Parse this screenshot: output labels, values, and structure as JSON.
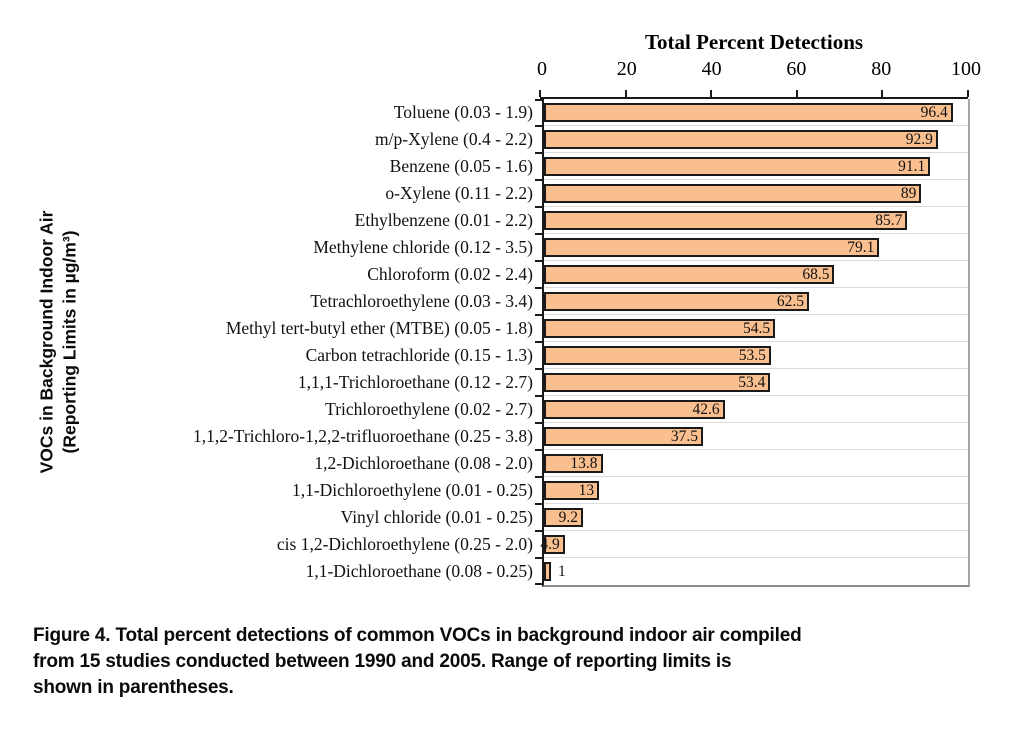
{
  "chart_data": {
    "type": "bar",
    "orientation": "horizontal",
    "title": "Total Percent Detections",
    "xlabel": "Total Percent Detections",
    "ylabel_line1": "VOCs in Background Indoor Air",
    "ylabel_line2": "(Reporting Limits in µg/m³)",
    "xlim": [
      0,
      100
    ],
    "x_ticks": [
      0,
      20,
      40,
      60,
      80,
      100
    ],
    "grid": "category-separators",
    "legend": "none",
    "colors": {
      "bar_fill": "#FABF8F",
      "bar_border": "#1a1a1a",
      "gridline": "#dcdcdc",
      "axis": "#1a1a1a"
    },
    "categories": [
      "Toluene (0.03 - 1.9)",
      "m/p-Xylene (0.4 - 2.2)",
      "Benzene (0.05 - 1.6)",
      "o-Xylene (0.11 - 2.2)",
      "Ethylbenzene (0.01 - 2.2)",
      "Methylene chloride (0.12 - 3.5)",
      "Chloroform (0.02 - 2.4)",
      "Tetrachloroethylene (0.03 - 3.4)",
      "Methyl tert-butyl ether (MTBE) (0.05 - 1.8)",
      "Carbon tetrachloride (0.15 - 1.3)",
      "1,1,1-Trichloroethane (0.12 - 2.7)",
      "Trichloroethylene (0.02 - 2.7)",
      "1,1,2-Trichloro-1,2,2-trifluoroethane (0.25 - 3.8)",
      "1,2-Dichloroethane (0.08 - 2.0)",
      "1,1-Dichloroethylene (0.01 - 0.25)",
      "Vinyl chloride (0.01 - 0.25)",
      "cis 1,2-Dichloroethylene (0.25 - 2.0)",
      "1,1-Dichloroethane (0.08 - 0.25)"
    ],
    "values": [
      96.4,
      92.9,
      91.1,
      89,
      85.7,
      79.1,
      68.5,
      62.5,
      54.5,
      53.5,
      53.4,
      42.6,
      37.5,
      13.8,
      13,
      9.2,
      4.9,
      1
    ],
    "value_labels": [
      "96.4",
      "92.9",
      "91.1",
      "89",
      "85.7",
      "79.1",
      "68.5",
      "62.5",
      "54.5",
      "53.5",
      "53.4",
      "42.6",
      "37.5",
      "13.8",
      "13",
      "9.2",
      "4.9",
      "1"
    ],
    "outside_label_indices": [
      17
    ]
  },
  "caption": {
    "line1": "Figure 4. Total percent detections of common VOCs in background indoor air compiled",
    "line2": "from 15 studies conducted between 1990 and 2005. Range of reporting limits is",
    "line3": "shown in parentheses."
  }
}
